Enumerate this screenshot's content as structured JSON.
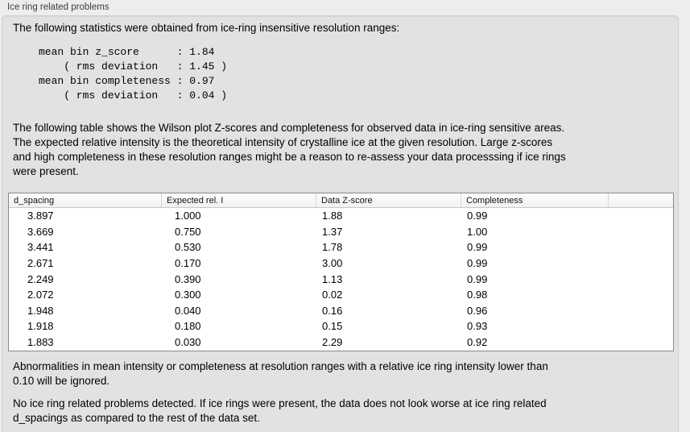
{
  "colors": {
    "page_background": "#ededed",
    "panel_background": "#e2e2e2",
    "table_background": "#ffffff",
    "table_border": "#898989"
  },
  "group": {
    "title": "Ice ring related problems"
  },
  "intro": "The following statistics were obtained from ice-ring insensitive resolution ranges:",
  "stats_block": "mean bin z_score      : 1.84\n    ( rms deviation   : 1.45 )\nmean bin completeness : 0.97\n    ( rms deviation   : 0.04 )",
  "stats": {
    "mean_bin_z_score": "1.84",
    "z_score_rms_deviation": "1.45",
    "mean_bin_completeness": "0.97",
    "completeness_rms_deviation": "0.04"
  },
  "table_description": "The following table shows the Wilson plot Z-scores and completeness for observed data in ice-ring sensitive areas.\nThe expected relative intensity is the theoretical intensity of crystalline ice at the given resolution. Large z-scores\nand high completeness in these resolution ranges might be a reason to re-assess your data processsing if ice rings\nwere present.",
  "table": {
    "columns": [
      "d_spacing",
      "Expected rel. I",
      "Data Z-score",
      "Completeness"
    ],
    "rows": [
      [
        "3.897",
        "1.000",
        "1.88",
        "0.99"
      ],
      [
        "3.669",
        "0.750",
        "1.37",
        "1.00"
      ],
      [
        "3.441",
        "0.530",
        "1.78",
        "0.99"
      ],
      [
        "2.671",
        "0.170",
        "3.00",
        "0.99"
      ],
      [
        "2.249",
        "0.390",
        "1.13",
        "0.99"
      ],
      [
        "2.072",
        "0.300",
        "0.02",
        "0.98"
      ],
      [
        "1.948",
        "0.040",
        "0.16",
        "0.96"
      ],
      [
        "1.918",
        "0.180",
        "0.15",
        "0.93"
      ],
      [
        "1.883",
        "0.030",
        "2.29",
        "0.92"
      ]
    ]
  },
  "note_ignore": "Abnormalities in mean intensity or completeness at resolution ranges with a relative ice ring intensity lower than\n0.10 will be ignored.",
  "conclusion": "No ice ring related problems detected. If ice rings were present, the data does not look worse at ice ring related\nd_spacings as compared to the rest of the data set."
}
